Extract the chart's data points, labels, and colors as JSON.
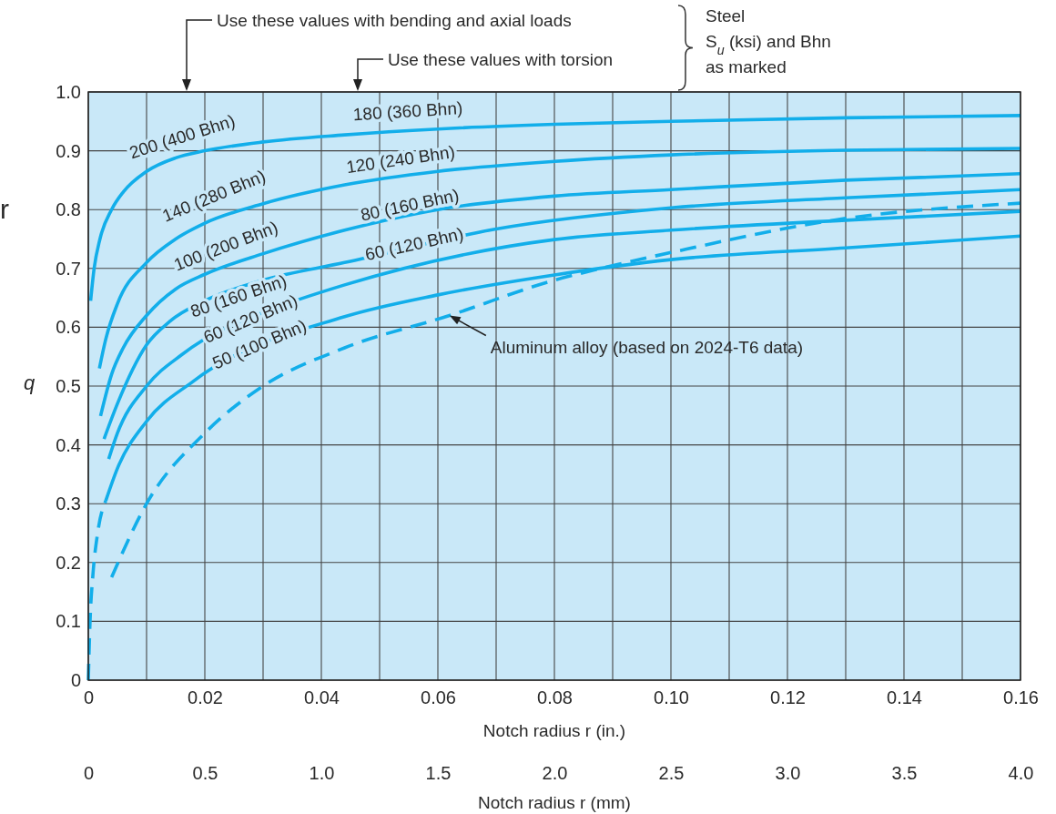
{
  "chart_data": {
    "type": "line",
    "xlabel": "Notch radius r (in.)",
    "ylabel": "q",
    "x2label": "Notch radius r (mm)",
    "xlim": [
      0,
      0.16
    ],
    "xticks": [
      0,
      {
        "value": 0.01,
        "label": null
      },
      0.02,
      {
        "value": 0.03,
        "label": null
      },
      0.04,
      {
        "value": 0.05,
        "label": null
      },
      0.06,
      {
        "value": 0.07,
        "label": null
      },
      0.08,
      {
        "value": 0.09,
        "label": null
      },
      {
        "value": 0.1,
        "label": "0.10"
      },
      {
        "value": 0.11,
        "label": null
      },
      0.12,
      {
        "value": 0.13,
        "label": null
      },
      0.14,
      {
        "value": 0.15,
        "label": null
      },
      0.16
    ],
    "x2lim": [
      0,
      4
    ],
    "x2ticks": [
      0,
      0.5,
      {
        "value": 1,
        "label": "1.0"
      },
      1.5,
      {
        "value": 2,
        "label": "2.0"
      },
      2.5,
      {
        "value": 3,
        "label": "3.0"
      },
      3.5,
      {
        "value": 4,
        "label": "4.0"
      }
    ],
    "ylim": [
      0,
      1
    ],
    "yticks": [
      0,
      0.1,
      0.2,
      0.3,
      0.4,
      0.5,
      0.6,
      0.7,
      0.8,
      0.9,
      {
        "value": 1,
        "label": "1.0"
      }
    ],
    "grid": true,
    "marker": "none",
    "series": [
      {
        "color": "#12aeea",
        "line_style": "solid",
        "x": [
          0.0004,
          0.001,
          0.002,
          0.004,
          0.006,
          0.01,
          0.015,
          0.02,
          0.03,
          0.044,
          0.06,
          0.08,
          0.1,
          0.13,
          0.16
        ],
        "values": [
          0.645,
          0.7,
          0.75,
          0.8,
          0.83,
          0.865,
          0.888,
          0.9,
          0.915,
          0.927,
          0.937,
          0.945,
          0.95,
          0.956,
          0.96
        ]
      },
      {
        "color": "#12aeea",
        "line_style": "solid",
        "x": [
          0.0019,
          0.003,
          0.005,
          0.01,
          0.015,
          0.02,
          0.03,
          0.044,
          0.06,
          0.08,
          0.1,
          0.13,
          0.16
        ],
        "values": [
          0.53,
          0.58,
          0.64,
          0.71,
          0.75,
          0.777,
          0.81,
          0.842,
          0.865,
          0.882,
          0.893,
          0.901,
          0.904
        ]
      },
      {
        "color": "#12aeea",
        "line_style": "solid",
        "x": [
          0.0021,
          0.004,
          0.006,
          0.01,
          0.015,
          0.02,
          0.03,
          0.044,
          0.06,
          0.08,
          0.1,
          0.13,
          0.16
        ],
        "values": [
          0.449,
          0.52,
          0.565,
          0.62,
          0.665,
          0.69,
          0.725,
          0.765,
          0.8,
          0.823,
          0.834,
          0.85,
          0.861
        ]
      },
      {
        "color": "#12aeea",
        "line_style": "solid",
        "x": [
          0.0027,
          0.005,
          0.01,
          0.014,
          0.02,
          0.03,
          0.044,
          0.07,
          0.1,
          0.13,
          0.16
        ],
        "values": [
          0.41,
          0.47,
          0.57,
          0.61,
          0.645,
          0.68,
          0.71,
          0.767,
          0.803,
          0.82,
          0.834
        ]
      },
      {
        "color": "#12aeea",
        "line_style": "solid",
        "x": [
          0.0035,
          0.005,
          0.01,
          0.016,
          0.02,
          0.03,
          0.044,
          0.08,
          0.1,
          0.13,
          0.16
        ],
        "values": [
          0.376,
          0.42,
          0.5,
          0.553,
          0.58,
          0.625,
          0.672,
          0.749,
          0.765,
          0.782,
          0.797
        ]
      },
      {
        "color": "#12aeea",
        "line_style": "solid",
        "x": [
          0.003,
          0.005,
          0.01,
          0.018,
          0.044,
          0.06,
          0.08,
          0.1,
          0.13,
          0.16
        ],
        "values": [
          0.305,
          0.36,
          0.44,
          0.508,
          0.618,
          0.655,
          0.689,
          0.715,
          0.735,
          0.755
        ]
      },
      {
        "color": "#12aeea",
        "line_style": "dashed",
        "x": [
          0,
          0.0003,
          0.0008,
          0.0016,
          0.003
        ],
        "values": [
          0,
          0.1,
          0.18,
          0.25,
          0.305
        ]
      },
      {
        "color": "#12aeea",
        "line_style": "dashed",
        "x": [
          0.004,
          0.01,
          0.02,
          0.03,
          0.044,
          0.062,
          0.08,
          0.088,
          0.1,
          0.13,
          0.16
        ],
        "values": [
          0.175,
          0.3,
          0.42,
          0.5,
          0.565,
          0.62,
          0.68,
          0.7,
          0.727,
          0.785,
          0.811
        ]
      }
    ],
    "annotations": [
      "Use these values with bending and axial loads",
      "Use these values with torsion",
      "Steel\nS$_{u}$ (ksi) and Bhn\nas marked",
      {
        "text": "Aluminum alloy (based on 2024-T6 data)",
        "x": 0.062,
        "y": 0.62
      },
      "200 (400 Bhn)",
      "180 (360 Bhn)",
      "140 (280 Bhn)",
      "120 (240 Bhn)",
      "100 (200 Bhn)",
      "80 (160 Bhn)",
      "80 (160 Bhn)",
      "60 (120 Bhn)",
      "60 (120 Bhn)",
      "50 (100 Bhn)",
      "r"
    ]
  }
}
